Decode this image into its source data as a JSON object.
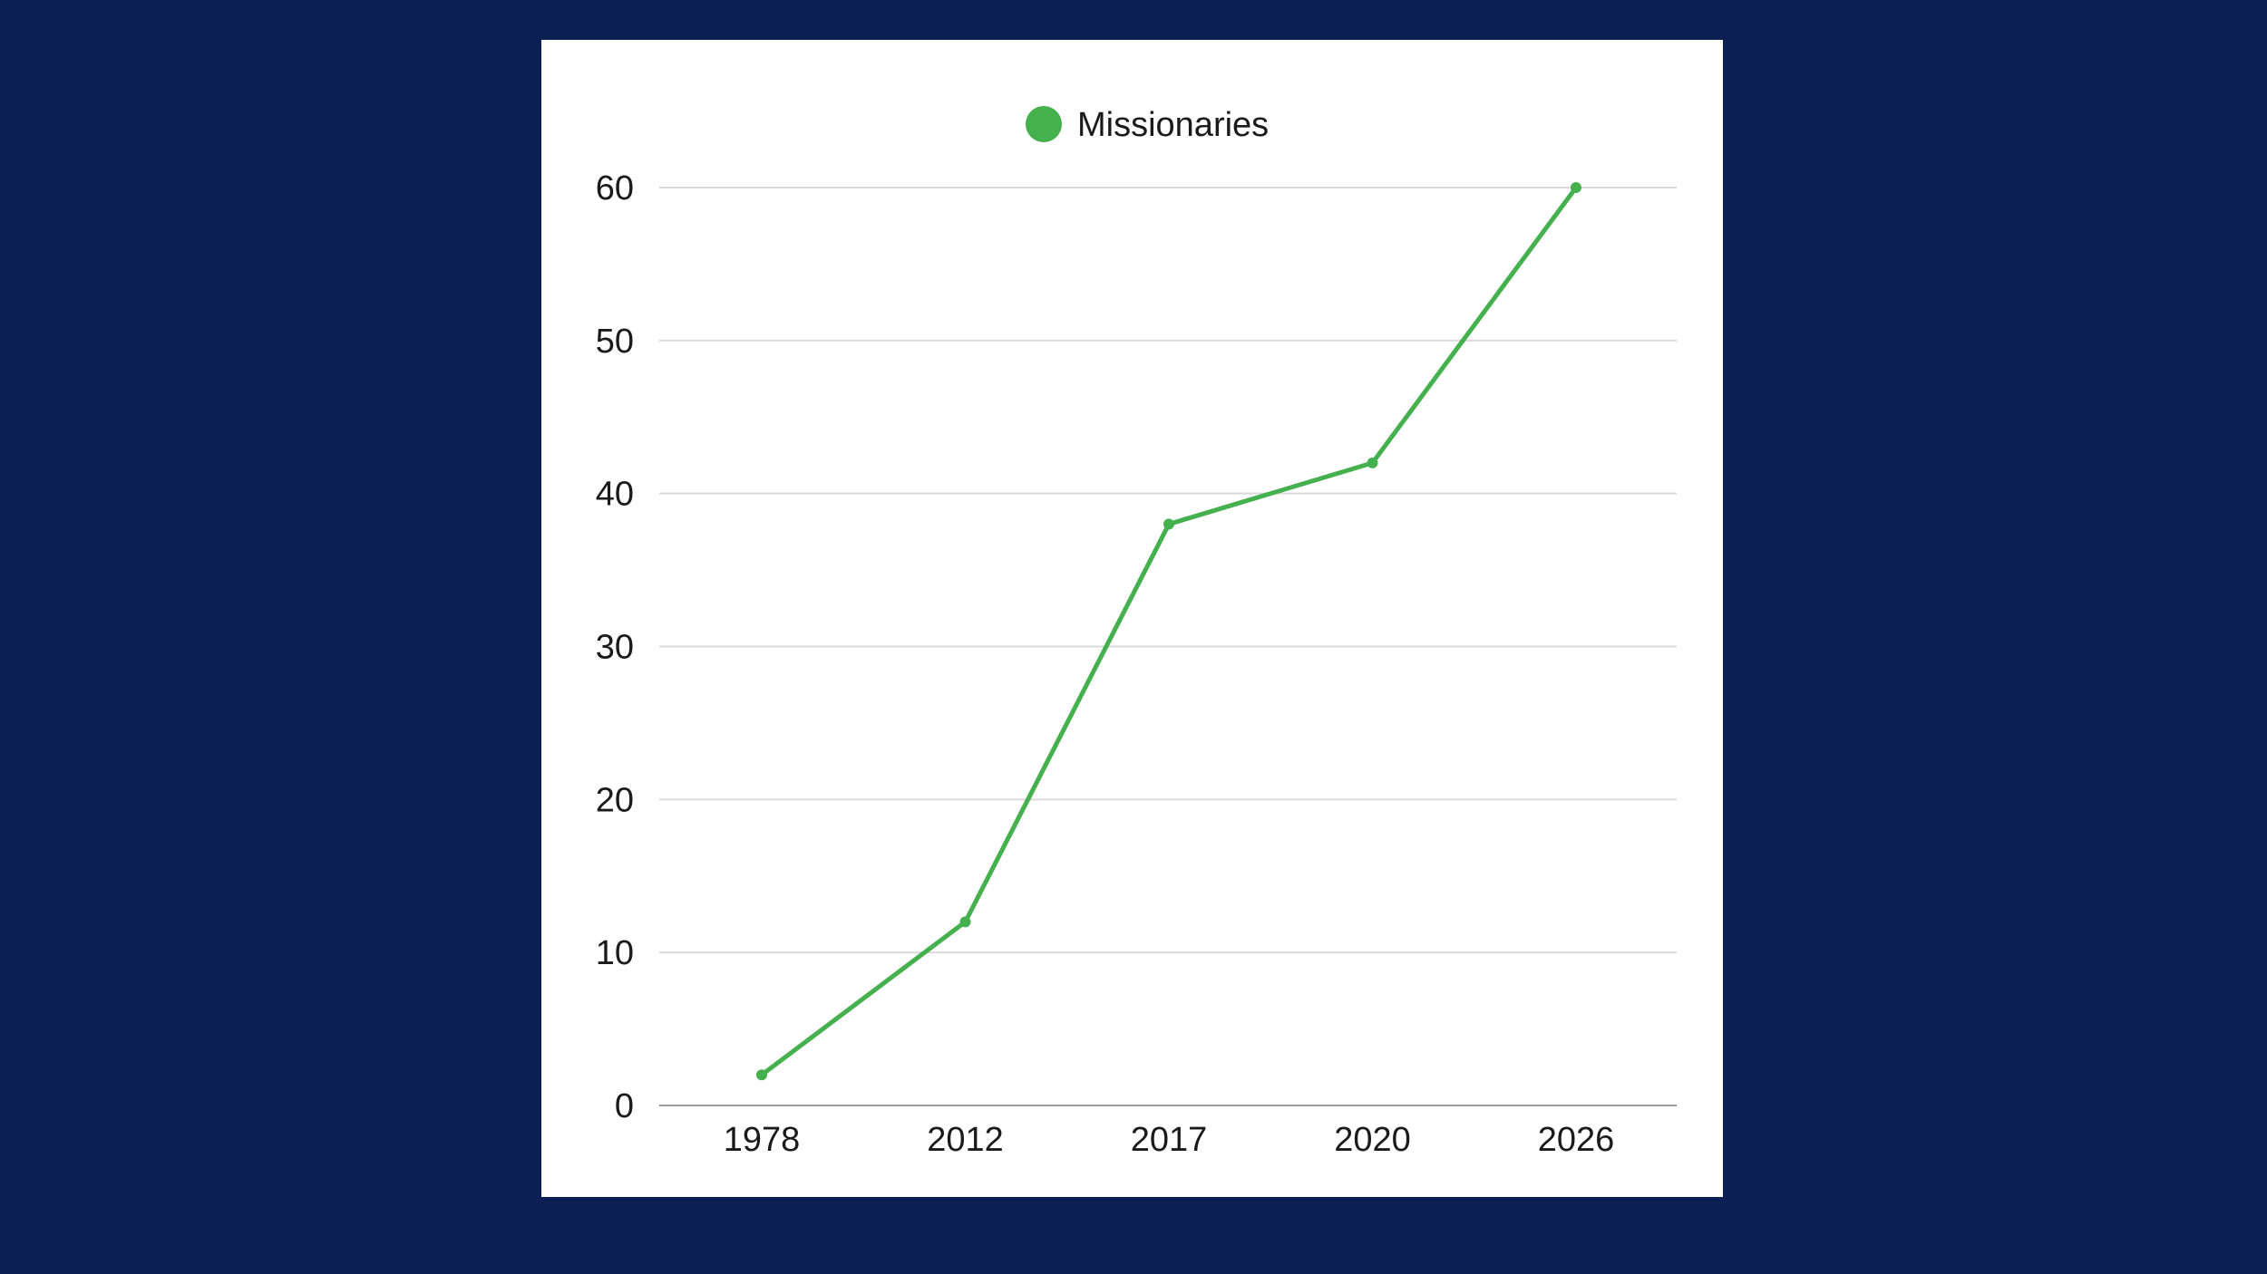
{
  "chart_data": {
    "type": "line",
    "title": "",
    "xlabel": "",
    "ylabel": "",
    "categories": [
      "1978",
      "2012",
      "2017",
      "2020",
      "2026"
    ],
    "series": [
      {
        "name": "Missionaries",
        "values": [
          2,
          12,
          38,
          42,
          60
        ],
        "color": "#45b04e"
      }
    ],
    "ylim": [
      0,
      60
    ],
    "yticks": [
      0,
      10,
      20,
      30,
      40,
      50,
      60
    ],
    "grid": true,
    "legend_position": "top-center"
  },
  "colors": {
    "background": "#0b1f52",
    "card": "#ffffff",
    "gridline": "#d9d9d9",
    "baseline": "#9a9a9a"
  }
}
